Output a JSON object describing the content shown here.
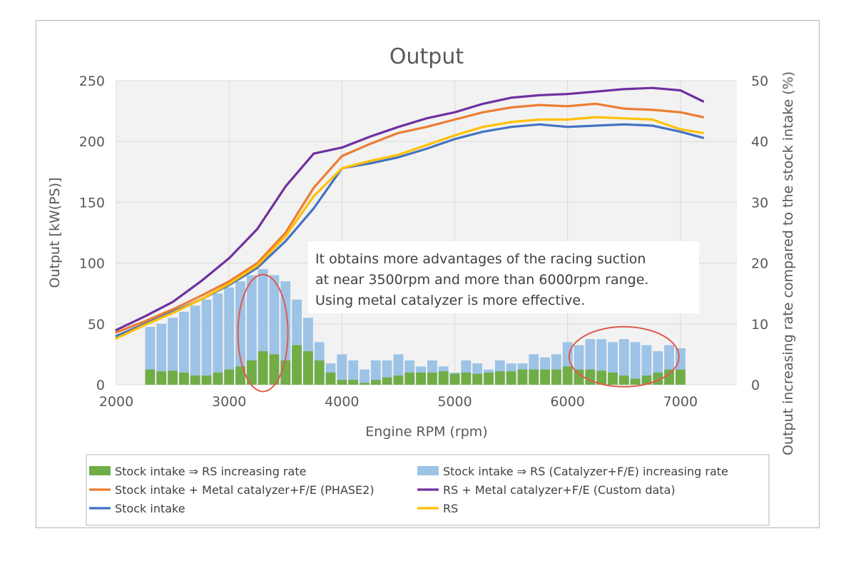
{
  "chart_data": {
    "type": "line",
    "title": "Output",
    "xlabel": "Engine RPM (rpm)",
    "ylabel": "Output [kW(PS)]",
    "y2label": "Output increasing rate compared to the stock intake (%)",
    "xlim": [
      2000,
      7500
    ],
    "ylim": [
      0,
      250
    ],
    "y2lim": [
      0,
      50
    ],
    "xticks": [
      "2000",
      "3000",
      "4000",
      "5000",
      "6000",
      "7000"
    ],
    "yticks": [
      "0",
      "50",
      "100",
      "150",
      "200",
      "250"
    ],
    "y2ticks": [
      "0",
      "10",
      "20",
      "30",
      "40",
      "50"
    ],
    "grid": true,
    "legend_position": "bottom",
    "annotation": [
      "It obtains more advantages of the racing suction",
      "at near 3500rpm and more than 6000rpm range.",
      "Using metal catalyzer is more effective."
    ],
    "highlights": [
      "ellipse near 3300 rpm",
      "ellipse near 6500 rpm"
    ],
    "lines": [
      {
        "name": "Stock intake + Metal catalyzer+F/E (PHASE2)",
        "color": "#ED7D31",
        "x": [
          2000,
          2250,
          2500,
          2750,
          3000,
          3250,
          3500,
          3750,
          4000,
          4250,
          4500,
          4750,
          5000,
          5250,
          5500,
          5750,
          6000,
          6250,
          6500,
          6750,
          7000,
          7200
        ],
        "y": [
          43,
          52,
          62,
          73,
          85,
          100,
          125,
          162,
          188,
          198,
          207,
          212,
          218,
          224,
          228,
          230,
          229,
          231,
          227,
          226,
          224,
          220
        ]
      },
      {
        "name": "RS + Metal catalyzer+F/E (Custom data)",
        "color": "#7030A0",
        "x": [
          2000,
          2250,
          2500,
          2750,
          3000,
          3250,
          3500,
          3750,
          4000,
          4250,
          4500,
          4750,
          5000,
          5250,
          5500,
          5750,
          6000,
          6250,
          6500,
          6750,
          7000,
          7200
        ],
        "y": [
          45,
          56,
          68,
          85,
          104,
          128,
          163,
          190,
          195,
          204,
          212,
          219,
          224,
          231,
          236,
          238,
          239,
          241,
          243,
          244,
          242,
          233
        ]
      },
      {
        "name": "Stock intake",
        "color": "#4472C4",
        "x": [
          2000,
          2250,
          2500,
          2750,
          3000,
          3250,
          3500,
          3750,
          4000,
          4250,
          4500,
          4750,
          5000,
          5250,
          5500,
          5750,
          6000,
          6250,
          6500,
          6750,
          7000,
          7200
        ],
        "y": [
          40,
          50,
          60,
          70,
          82,
          96,
          118,
          145,
          178,
          182,
          187,
          194,
          202,
          208,
          212,
          214,
          212,
          213,
          214,
          213,
          208,
          203
        ]
      },
      {
        "name": "RS",
        "color": "#FFC000",
        "x": [
          2000,
          2250,
          2500,
          2750,
          3000,
          3250,
          3500,
          3750,
          4000,
          4250,
          4500,
          4750,
          5000,
          5250,
          5500,
          5750,
          6000,
          6250,
          6500,
          6750,
          7000,
          7200
        ],
        "y": [
          38,
          49,
          59,
          70,
          83,
          98,
          122,
          155,
          178,
          184,
          189,
          197,
          205,
          212,
          216,
          218,
          218,
          220,
          219,
          218,
          210,
          207
        ]
      }
    ],
    "bars": [
      {
        "name": "Stock intake ⇒ RS (Catalyzer+F/E) increasing rate",
        "color": "#9DC3E6",
        "x": [
          2300,
          2400,
          2500,
          2600,
          2700,
          2800,
          2900,
          3000,
          3100,
          3200,
          3300,
          3400,
          3500,
          3600,
          3700,
          3800,
          3900,
          4000,
          4100,
          4200,
          4300,
          4400,
          4500,
          4600,
          4700,
          4800,
          4900,
          5000,
          5100,
          5200,
          5300,
          5400,
          5500,
          5600,
          5700,
          5800,
          5900,
          6000,
          6100,
          6200,
          6300,
          6400,
          6500,
          6600,
          6700,
          6800,
          6900,
          7000
        ],
        "y": [
          9.5,
          10,
          11,
          12,
          13,
          14,
          15,
          16,
          17,
          18,
          19,
          18,
          17,
          14,
          11,
          7,
          3.5,
          5,
          4,
          2.5,
          4,
          4,
          5,
          4,
          3,
          4,
          3,
          2,
          4,
          3.5,
          2.5,
          4,
          3.5,
          3.5,
          5,
          4.5,
          5,
          7,
          6.5,
          7.5,
          7.5,
          7,
          7.5,
          7,
          6.5,
          5.5,
          6.5,
          6
        ]
      },
      {
        "name": "Stock intake ⇒ RS increasing rate",
        "color": "#70AD47",
        "x": [
          2300,
          2400,
          2500,
          2600,
          2700,
          2800,
          2900,
          3000,
          3100,
          3200,
          3300,
          3400,
          3500,
          3600,
          3700,
          3800,
          3900,
          4000,
          4100,
          4200,
          4300,
          4400,
          4500,
          4600,
          4700,
          4800,
          4900,
          5000,
          5100,
          5200,
          5300,
          5400,
          5500,
          5600,
          5700,
          5800,
          5900,
          6000,
          6100,
          6200,
          6300,
          6400,
          6500,
          6600,
          6700,
          6800,
          6900,
          7000
        ],
        "y": [
          2.5,
          2.2,
          2.3,
          2,
          1.5,
          1.5,
          2,
          2.5,
          3,
          4,
          5.5,
          5,
          4,
          6.5,
          5.5,
          4,
          2,
          0.8,
          0.8,
          0.3,
          0.8,
          1.2,
          1.5,
          2,
          2,
          2,
          2.2,
          1.8,
          2,
          1.8,
          2,
          2.2,
          2.2,
          2.5,
          2.5,
          2.5,
          2.5,
          3,
          2.5,
          2.5,
          2.3,
          2,
          1.5,
          1,
          1.5,
          2,
          2.5,
          2.5
        ]
      }
    ],
    "legend": [
      {
        "label": "Stock intake ⇒ RS increasing rate",
        "kind": "bar",
        "color": "#70AD47"
      },
      {
        "label": "Stock intake ⇒ RS (Catalyzer+F/E) increasing rate",
        "kind": "bar",
        "color": "#9DC3E6"
      },
      {
        "label": "Stock intake + Metal catalyzer+F/E (PHASE2)",
        "kind": "line",
        "color": "#ED7D31"
      },
      {
        "label": "RS + Metal catalyzer+F/E (Custom data)",
        "kind": "line",
        "color": "#7030A0"
      },
      {
        "label": "Stock intake",
        "kind": "line",
        "color": "#4472C4"
      },
      {
        "label": "RS",
        "kind": "line",
        "color": "#FFC000"
      }
    ]
  }
}
